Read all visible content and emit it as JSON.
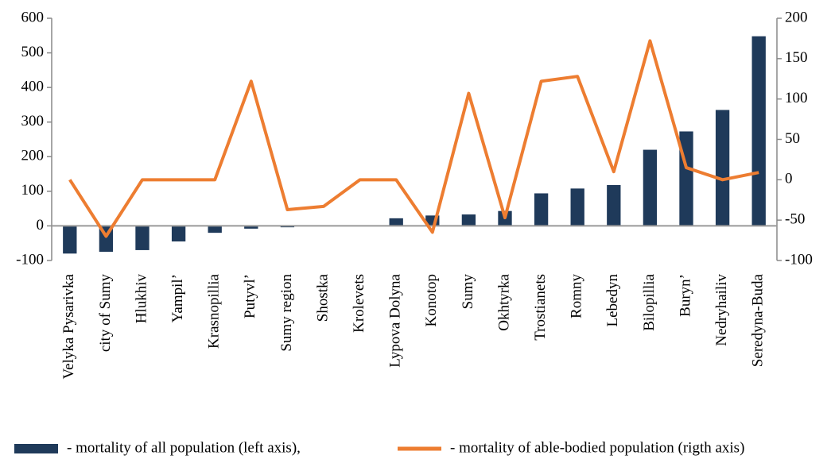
{
  "chart_data": {
    "type": "bar_line",
    "categories": [
      "Velyka Pysarivka",
      "city of Sumy",
      "Hlukhiv",
      "Yampil’",
      "Krasnopillia",
      "Putyvl’",
      "Sumy region",
      "Shostka",
      "Krolevets",
      "Lypova Dolyna",
      "Konotop",
      "Sumy",
      "Okhtyrka",
      "Trostianets",
      "Romny",
      "Lebedyn",
      "Bilopillia",
      "Buryn’",
      "Nedryhailiv",
      "Seredyna-Buda"
    ],
    "series": [
      {
        "name": "- mortality of all population (left axis),",
        "color": "#1f3a5a",
        "type": "bar",
        "values": [
          -80,
          -75,
          -70,
          -45,
          -20,
          -8,
          -4,
          0,
          0,
          22,
          30,
          33,
          43,
          94,
          108,
          118,
          220,
          273,
          335,
          548
        ]
      },
      {
        "name": "- mortality of able-bodied population (rigth axis)",
        "color": "#ed7d31",
        "type": "line",
        "axis": "y2",
        "values": [
          0,
          -70,
          0,
          0,
          0,
          122,
          -37,
          -33,
          0,
          0,
          -65,
          107,
          -47,
          122,
          128,
          10,
          172,
          15,
          0,
          9
        ]
      }
    ],
    "ylim": [
      -100,
      600
    ],
    "yticks": [
      -100,
      0,
      100,
      200,
      300,
      400,
      500,
      600
    ],
    "y2lim": [
      -100,
      200
    ],
    "y2ticks": [
      -100,
      -50,
      0,
      50,
      100,
      150,
      200
    ]
  }
}
